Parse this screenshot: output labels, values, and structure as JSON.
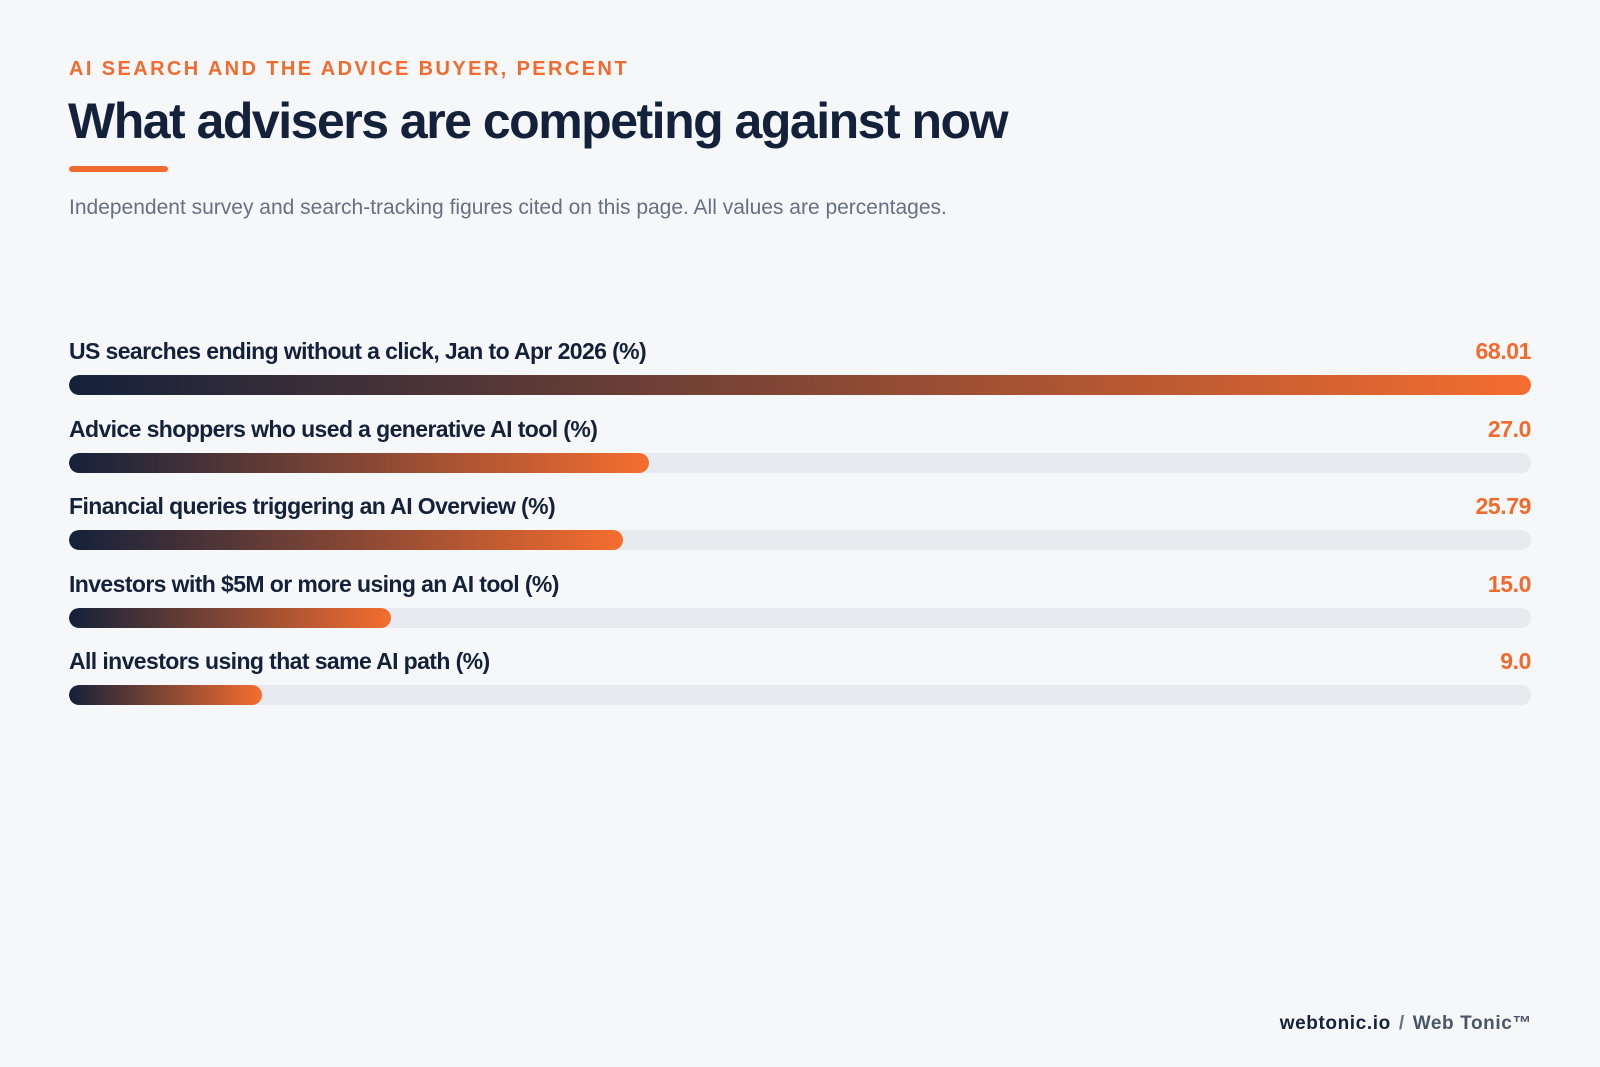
{
  "header": {
    "kicker": "AI SEARCH AND THE ADVICE BUYER, PERCENT",
    "title": "What advisers are competing against now",
    "subtitle": "Independent survey and search-tracking figures cited on this page. All values are percentages."
  },
  "footer": {
    "site": "webtonic.io",
    "separator": "/",
    "brand": "Web Tonic™"
  },
  "colors": {
    "accent": "#f26b2e",
    "navy": "#14213a",
    "track": "#e7eaee",
    "background": "#f6f7f9"
  },
  "chart_data": {
    "type": "bar",
    "orientation": "horizontal",
    "title": "What advisers are competing against now",
    "subtitle": "Independent survey and search-tracking figures cited on this page. All values are percentages.",
    "categories": [
      "US searches ending without a click, Jan to Apr 2026 (%)",
      "Advice shoppers who used a generative AI tool (%)",
      "Financial queries triggering an AI Overview (%)",
      "Investors with $5M or more using an AI tool (%)",
      "All investors using that same AI path (%)"
    ],
    "values": [
      68.01,
      27.0,
      25.79,
      15.0,
      9.0
    ],
    "value_labels": [
      "68.01",
      "27.0",
      "25.79",
      "15.0",
      "9.0"
    ],
    "xlim": [
      0,
      68.01
    ],
    "grid": false,
    "legend": "none"
  }
}
